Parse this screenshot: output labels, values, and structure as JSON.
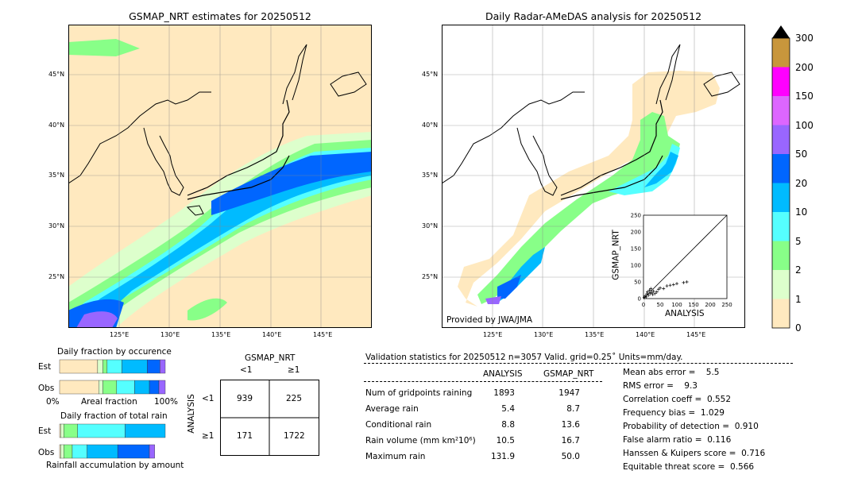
{
  "left_map": {
    "title": "GSMAP_NRT estimates for 20250512",
    "lat_labels": [
      "45°N",
      "40°N",
      "35°N",
      "30°N",
      "25°N"
    ],
    "lon_labels": [
      "125°E",
      "130°E",
      "135°E",
      "140°E",
      "145°E"
    ]
  },
  "right_map": {
    "title": "Daily Radar-AMeDAS analysis for 20250512",
    "lat_labels": [
      "45°N",
      "40°N",
      "35°N",
      "30°N",
      "25°N"
    ],
    "lon_labels": [
      "125°E",
      "130°E",
      "135°E",
      "140°E",
      "145°E"
    ],
    "credit": "Provided by JWA/JMA"
  },
  "colorbar": {
    "labels": [
      "300",
      "200",
      "150",
      "100",
      "50",
      "20",
      "10",
      "5",
      "2",
      "1",
      "0"
    ],
    "colors": [
      "#c8963c",
      "#ff00ff",
      "#dd66ff",
      "#9966ff",
      "#0066ff",
      "#00bbff",
      "#55ffff",
      "#88ff88",
      "#ddffcc",
      "#ffe9bf"
    ]
  },
  "inset": {
    "ylabel": "GSMAP_NRT",
    "xlabel": "ANALYSIS",
    "ticks": [
      "0",
      "50",
      "100",
      "150",
      "200",
      "250"
    ]
  },
  "fraction_occurrence": {
    "title": "Daily fraction by occurence",
    "rows": [
      "Est",
      "Obs"
    ],
    "axis_left": "0%",
    "axis_mid": "Areal fraction",
    "axis_right": "100%"
  },
  "fraction_rain": {
    "title": "Daily fraction of total rain",
    "rows": [
      "Est",
      "Obs"
    ],
    "footer": "Rainfall accumulation by amount"
  },
  "contingency": {
    "title": "GSMAP_NRT",
    "col_labels": [
      "<1",
      "≥1"
    ],
    "row_title": "ANALYSIS",
    "row_labels": [
      "<1",
      "≥1"
    ],
    "cells": [
      [
        "939",
        "225"
      ],
      [
        "171",
        "1722"
      ]
    ]
  },
  "validation": {
    "header": "Validation statistics for 20250512  n=3057 Valid. grid=0.25˚ Units=mm/day.",
    "col_analysis": "ANALYSIS",
    "col_gsmap": "GSMAP_NRT",
    "rows": [
      {
        "label": "Num of gridpoints raining",
        "analysis": "1893",
        "gsmap": "1947"
      },
      {
        "label": "Average rain",
        "analysis": "5.4",
        "gsmap": "8.7"
      },
      {
        "label": "Conditional rain",
        "analysis": "8.8",
        "gsmap": "13.6"
      },
      {
        "label": "Rain volume (mm km²10⁶)",
        "analysis": "10.5",
        "gsmap": "16.7"
      },
      {
        "label": "Maximum rain",
        "analysis": "131.9",
        "gsmap": "50.0"
      }
    ],
    "scores": [
      "Mean abs error =    5.5",
      "RMS error =    9.3",
      "Correlation coeff =  0.552",
      "Frequency bias =  1.029",
      "Probability of detection =  0.910",
      "False alarm ratio =  0.116",
      "Hanssen & Kuipers score =  0.716",
      "Equitable threat score =  0.566"
    ]
  },
  "chart_data": [
    {
      "type": "table",
      "title": "GSMAP_NRT",
      "columns": [
        "<1",
        "≥1"
      ],
      "rows": [
        {
          "name": "<1",
          "values": [
            939,
            225
          ]
        },
        {
          "name": "≥1",
          "values": [
            171,
            1722
          ]
        }
      ]
    },
    {
      "type": "bar",
      "title": "Daily fraction by occurence",
      "categories": [
        "Est",
        "Obs"
      ],
      "series": [
        {
          "values": [
            0.36,
            0.37
          ]
        },
        {
          "values": [
            0.05,
            0.04
          ]
        },
        {
          "values": [
            0.04,
            0.13
          ]
        },
        {
          "values": [
            0.14,
            0.17
          ]
        },
        {
          "values": [
            0.24,
            0.14
          ]
        },
        {
          "values": [
            0.12,
            0.09
          ]
        },
        {
          "values": [
            0.05,
            0.06
          ]
        }
      ]
    },
    {
      "type": "bar",
      "title": "Daily fraction of total rain",
      "categories": [
        "Est",
        "Obs"
      ],
      "series": [
        {
          "values": [
            0.01,
            0.01
          ]
        },
        {
          "values": [
            0.03,
            0.03
          ]
        },
        {
          "values": [
            0.13,
            0.08
          ]
        },
        {
          "values": [
            0.45,
            0.14
          ]
        },
        {
          "values": [
            0.38,
            0.29
          ]
        },
        {
          "values": [
            0.0,
            0.3
          ]
        },
        {
          "values": [
            0.0,
            0.05
          ]
        }
      ]
    },
    {
      "type": "scatter",
      "xlabel": "ANALYSIS",
      "ylabel": "GSMAP_NRT",
      "xlim": [
        0,
        250
      ],
      "ylim": [
        0,
        250
      ],
      "points": [
        [
          2,
          3
        ],
        [
          5,
          8
        ],
        [
          8,
          5
        ],
        [
          10,
          14
        ],
        [
          12,
          20
        ],
        [
          15,
          10
        ],
        [
          18,
          25
        ],
        [
          20,
          15
        ],
        [
          22,
          30
        ],
        [
          25,
          18
        ],
        [
          28,
          12
        ],
        [
          30,
          22
        ],
        [
          35,
          15
        ],
        [
          40,
          20
        ],
        [
          45,
          28
        ],
        [
          50,
          32
        ],
        [
          60,
          30
        ],
        [
          70,
          38
        ],
        [
          80,
          40
        ],
        [
          90,
          42
        ],
        [
          100,
          45
        ],
        [
          120,
          48
        ],
        [
          130,
          50
        ]
      ]
    }
  ]
}
